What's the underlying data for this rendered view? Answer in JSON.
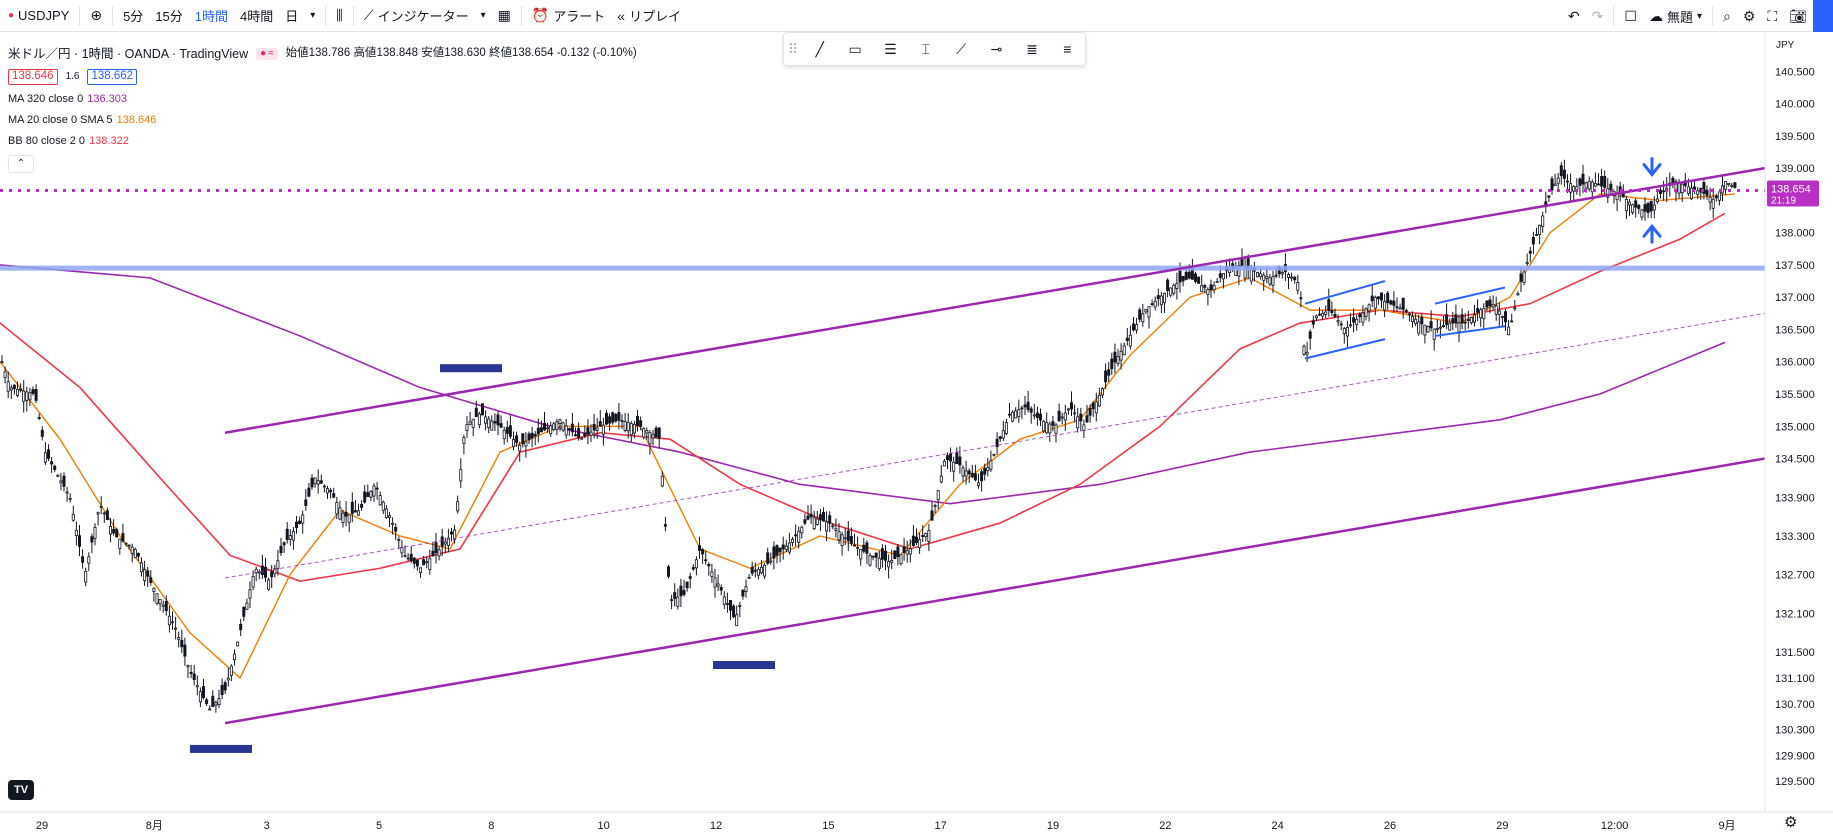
{
  "toolbar": {
    "symbol": "USDJPY",
    "intervals": [
      "5分",
      "15分",
      "1時間",
      "4時間",
      "日"
    ],
    "active_interval": "1時間",
    "indicators_label": "インジケーター",
    "alert_label": "アラート",
    "replay_label": "リプレイ",
    "layout_label": "無題"
  },
  "legend": {
    "title": "米ドル／円 · 1時間 · OANDA · TradingView",
    "open_label": "始値",
    "open": "138.786",
    "high_label": "高値",
    "high": "138.848",
    "low_label": "安値",
    "low": "138.630",
    "close_label": "終値",
    "close": "138.654",
    "change": "-0.132 (-0.10%)",
    "bid": "138.646",
    "spread": "1.6",
    "ask": "138.662",
    "indicators": [
      {
        "label": "MA 320 close 0",
        "value": "136.303",
        "color": "#9c27b0"
      },
      {
        "label": "MA 20 close 0 SMA 5",
        "value": "138.646",
        "color": "#f57c00"
      },
      {
        "label": "BB 80 close 2 0",
        "value": "138.322",
        "color": "#f23645"
      }
    ]
  },
  "chart_data": {
    "type": "candlestick",
    "symbol": "USDJPY",
    "timeframe": "1時間",
    "y_axis_label": "JPY",
    "ylim": [
      129.1,
      140.8
    ],
    "y_ticks": [
      "140.500",
      "140.000",
      "139.500",
      "139.000",
      "138.500",
      "138.000",
      "137.500",
      "137.000",
      "136.500",
      "136.000",
      "135.500",
      "135.000",
      "134.500",
      "133.900",
      "133.300",
      "132.700",
      "132.100",
      "131.500",
      "131.100",
      "130.700",
      "130.300",
      "129.900",
      "129.500"
    ],
    "x_ticks": [
      "29",
      "8月",
      "3",
      "5",
      "8",
      "10",
      "12",
      "15",
      "17",
      "19",
      "22",
      "24",
      "26",
      "29",
      "12:00",
      "9月"
    ],
    "current_price": "138.654",
    "countdown": "21:19",
    "price_path": [
      {
        "x": 0,
        "y": 136.1
      },
      {
        "x": 10,
        "y": 135.6
      },
      {
        "x": 35,
        "y": 135.5
      },
      {
        "x": 45,
        "y": 134.6
      },
      {
        "x": 70,
        "y": 133.9
      },
      {
        "x": 85,
        "y": 132.7
      },
      {
        "x": 100,
        "y": 133.8
      },
      {
        "x": 115,
        "y": 133.3
      },
      {
        "x": 135,
        "y": 133.1
      },
      {
        "x": 150,
        "y": 132.6
      },
      {
        "x": 175,
        "y": 131.9
      },
      {
        "x": 190,
        "y": 131.2
      },
      {
        "x": 210,
        "y": 130.6
      },
      {
        "x": 225,
        "y": 130.9
      },
      {
        "x": 240,
        "y": 131.8
      },
      {
        "x": 255,
        "y": 132.8
      },
      {
        "x": 270,
        "y": 132.6
      },
      {
        "x": 285,
        "y": 133.2
      },
      {
        "x": 300,
        "y": 133.5
      },
      {
        "x": 315,
        "y": 134.2
      },
      {
        "x": 330,
        "y": 134.0
      },
      {
        "x": 345,
        "y": 133.6
      },
      {
        "x": 360,
        "y": 133.7
      },
      {
        "x": 375,
        "y": 134.1
      },
      {
        "x": 390,
        "y": 133.6
      },
      {
        "x": 405,
        "y": 133.0
      },
      {
        "x": 420,
        "y": 132.8
      },
      {
        "x": 440,
        "y": 133.1
      },
      {
        "x": 455,
        "y": 133.4
      },
      {
        "x": 465,
        "y": 135.0
      },
      {
        "x": 480,
        "y": 135.2
      },
      {
        "x": 500,
        "y": 135.0
      },
      {
        "x": 520,
        "y": 134.7
      },
      {
        "x": 540,
        "y": 134.9
      },
      {
        "x": 560,
        "y": 135.1
      },
      {
        "x": 580,
        "y": 134.8
      },
      {
        "x": 600,
        "y": 135.0
      },
      {
        "x": 620,
        "y": 135.1
      },
      {
        "x": 640,
        "y": 135.0
      },
      {
        "x": 660,
        "y": 134.8
      },
      {
        "x": 670,
        "y": 132.3
      },
      {
        "x": 685,
        "y": 132.4
      },
      {
        "x": 700,
        "y": 133.1
      },
      {
        "x": 720,
        "y": 132.5
      },
      {
        "x": 735,
        "y": 132.0
      },
      {
        "x": 750,
        "y": 132.7
      },
      {
        "x": 770,
        "y": 132.9
      },
      {
        "x": 790,
        "y": 133.2
      },
      {
        "x": 810,
        "y": 133.6
      },
      {
        "x": 830,
        "y": 133.5
      },
      {
        "x": 850,
        "y": 133.2
      },
      {
        "x": 870,
        "y": 133.0
      },
      {
        "x": 890,
        "y": 132.9
      },
      {
        "x": 910,
        "y": 133.1
      },
      {
        "x": 930,
        "y": 133.4
      },
      {
        "x": 945,
        "y": 134.5
      },
      {
        "x": 960,
        "y": 134.4
      },
      {
        "x": 980,
        "y": 134.1
      },
      {
        "x": 995,
        "y": 134.6
      },
      {
        "x": 1010,
        "y": 135.2
      },
      {
        "x": 1025,
        "y": 135.3
      },
      {
        "x": 1040,
        "y": 135.1
      },
      {
        "x": 1055,
        "y": 135.0
      },
      {
        "x": 1070,
        "y": 135.3
      },
      {
        "x": 1085,
        "y": 135.0
      },
      {
        "x": 1100,
        "y": 135.5
      },
      {
        "x": 1115,
        "y": 136.0
      },
      {
        "x": 1130,
        "y": 136.4
      },
      {
        "x": 1145,
        "y": 136.8
      },
      {
        "x": 1160,
        "y": 137.0
      },
      {
        "x": 1175,
        "y": 137.2
      },
      {
        "x": 1190,
        "y": 137.3
      },
      {
        "x": 1210,
        "y": 137.1
      },
      {
        "x": 1225,
        "y": 137.4
      },
      {
        "x": 1240,
        "y": 137.5
      },
      {
        "x": 1255,
        "y": 137.4
      },
      {
        "x": 1270,
        "y": 137.3
      },
      {
        "x": 1285,
        "y": 137.4
      },
      {
        "x": 1300,
        "y": 137.2
      },
      {
        "x": 1305,
        "y": 136.0
      },
      {
        "x": 1315,
        "y": 136.7
      },
      {
        "x": 1330,
        "y": 136.8
      },
      {
        "x": 1345,
        "y": 136.5
      },
      {
        "x": 1360,
        "y": 136.7
      },
      {
        "x": 1375,
        "y": 137.0
      },
      {
        "x": 1390,
        "y": 136.9
      },
      {
        "x": 1405,
        "y": 136.8
      },
      {
        "x": 1420,
        "y": 136.6
      },
      {
        "x": 1435,
        "y": 136.5
      },
      {
        "x": 1450,
        "y": 136.6
      },
      {
        "x": 1465,
        "y": 136.6
      },
      {
        "x": 1480,
        "y": 136.8
      },
      {
        "x": 1495,
        "y": 136.9
      },
      {
        "x": 1510,
        "y": 136.5
      },
      {
        "x": 1520,
        "y": 137.2
      },
      {
        "x": 1535,
        "y": 137.9
      },
      {
        "x": 1550,
        "y": 138.6
      },
      {
        "x": 1560,
        "y": 138.9
      },
      {
        "x": 1575,
        "y": 138.7
      },
      {
        "x": 1590,
        "y": 138.8
      },
      {
        "x": 1605,
        "y": 138.7
      },
      {
        "x": 1620,
        "y": 138.6
      },
      {
        "x": 1635,
        "y": 138.4
      },
      {
        "x": 1650,
        "y": 138.3
      },
      {
        "x": 1660,
        "y": 138.6
      },
      {
        "x": 1675,
        "y": 138.8
      },
      {
        "x": 1690,
        "y": 138.7
      },
      {
        "x": 1705,
        "y": 138.6
      },
      {
        "x": 1715,
        "y": 138.5
      },
      {
        "x": 1725,
        "y": 138.8
      },
      {
        "x": 1735,
        "y": 138.7
      }
    ],
    "ma320": [
      {
        "x": 0,
        "y": 137.5
      },
      {
        "x": 150,
        "y": 137.3
      },
      {
        "x": 300,
        "y": 136.4
      },
      {
        "x": 420,
        "y": 135.6
      },
      {
        "x": 550,
        "y": 135.0
      },
      {
        "x": 680,
        "y": 134.6
      },
      {
        "x": 800,
        "y": 134.1
      },
      {
        "x": 950,
        "y": 133.8
      },
      {
        "x": 1100,
        "y": 134.1
      },
      {
        "x": 1250,
        "y": 134.6
      },
      {
        "x": 1350,
        "y": 134.8
      },
      {
        "x": 1500,
        "y": 135.1
      },
      {
        "x": 1600,
        "y": 135.5
      },
      {
        "x": 1725,
        "y": 136.3
      }
    ],
    "ma20": [
      {
        "x": 0,
        "y": 136.0
      },
      {
        "x": 60,
        "y": 134.8
      },
      {
        "x": 120,
        "y": 133.3
      },
      {
        "x": 190,
        "y": 131.8
      },
      {
        "x": 240,
        "y": 131.1
      },
      {
        "x": 290,
        "y": 132.7
      },
      {
        "x": 340,
        "y": 133.7
      },
      {
        "x": 400,
        "y": 133.3
      },
      {
        "x": 450,
        "y": 133.1
      },
      {
        "x": 500,
        "y": 134.6
      },
      {
        "x": 560,
        "y": 135.0
      },
      {
        "x": 640,
        "y": 135.0
      },
      {
        "x": 700,
        "y": 133.1
      },
      {
        "x": 750,
        "y": 132.8
      },
      {
        "x": 820,
        "y": 133.3
      },
      {
        "x": 900,
        "y": 133.0
      },
      {
        "x": 960,
        "y": 134.1
      },
      {
        "x": 1020,
        "y": 134.8
      },
      {
        "x": 1080,
        "y": 135.1
      },
      {
        "x": 1130,
        "y": 136.1
      },
      {
        "x": 1190,
        "y": 137.0
      },
      {
        "x": 1250,
        "y": 137.3
      },
      {
        "x": 1310,
        "y": 136.8
      },
      {
        "x": 1380,
        "y": 136.8
      },
      {
        "x": 1460,
        "y": 136.6
      },
      {
        "x": 1510,
        "y": 137.0
      },
      {
        "x": 1550,
        "y": 138.0
      },
      {
        "x": 1600,
        "y": 138.6
      },
      {
        "x": 1660,
        "y": 138.5
      },
      {
        "x": 1735,
        "y": 138.6
      }
    ],
    "bb80": [
      {
        "x": 0,
        "y": 136.6
      },
      {
        "x": 80,
        "y": 135.6
      },
      {
        "x": 160,
        "y": 134.2
      },
      {
        "x": 230,
        "y": 133.0
      },
      {
        "x": 300,
        "y": 132.6
      },
      {
        "x": 380,
        "y": 132.8
      },
      {
        "x": 460,
        "y": 133.1
      },
      {
        "x": 520,
        "y": 134.6
      },
      {
        "x": 600,
        "y": 134.9
      },
      {
        "x": 670,
        "y": 134.8
      },
      {
        "x": 740,
        "y": 134.1
      },
      {
        "x": 830,
        "y": 133.5
      },
      {
        "x": 910,
        "y": 133.1
      },
      {
        "x": 1000,
        "y": 133.5
      },
      {
        "x": 1080,
        "y": 134.1
      },
      {
        "x": 1160,
        "y": 135.0
      },
      {
        "x": 1240,
        "y": 136.2
      },
      {
        "x": 1300,
        "y": 136.6
      },
      {
        "x": 1380,
        "y": 136.8
      },
      {
        "x": 1460,
        "y": 136.7
      },
      {
        "x": 1530,
        "y": 136.9
      },
      {
        "x": 1600,
        "y": 137.4
      },
      {
        "x": 1680,
        "y": 137.9
      },
      {
        "x": 1725,
        "y": 138.3
      }
    ],
    "channel": {
      "upper": [
        {
          "x": 225,
          "y": 134.9
        },
        {
          "x": 1765,
          "y": 139.0
        }
      ],
      "lower": [
        {
          "x": 225,
          "y": 130.4
        },
        {
          "x": 1765,
          "y": 134.5
        }
      ],
      "mid": [
        {
          "x": 225,
          "y": 132.65
        },
        {
          "x": 1765,
          "y": 136.75
        }
      ]
    },
    "horizontal_level": 137.45,
    "price_line": 138.654,
    "flag_lines": [
      [
        {
          "x": 1305,
          "y": 136.9
        },
        {
          "x": 1385,
          "y": 137.25
        }
      ],
      [
        {
          "x": 1305,
          "y": 136.05
        },
        {
          "x": 1385,
          "y": 136.35
        }
      ],
      [
        {
          "x": 1435,
          "y": 136.9
        },
        {
          "x": 1505,
          "y": 137.15
        }
      ],
      [
        {
          "x": 1435,
          "y": 136.4
        },
        {
          "x": 1505,
          "y": 136.55
        }
      ]
    ],
    "markers": [
      {
        "x1": 190,
        "x2": 252,
        "y": 130.0
      },
      {
        "x1": 440,
        "x2": 502,
        "y": 135.9
      },
      {
        "x1": 713,
        "x2": 775,
        "y": 131.3
      }
    ],
    "arrows": [
      {
        "x": 1652,
        "y": 138.9,
        "dir": "down"
      },
      {
        "x": 1652,
        "y": 138.1,
        "dir": "up"
      }
    ]
  }
}
